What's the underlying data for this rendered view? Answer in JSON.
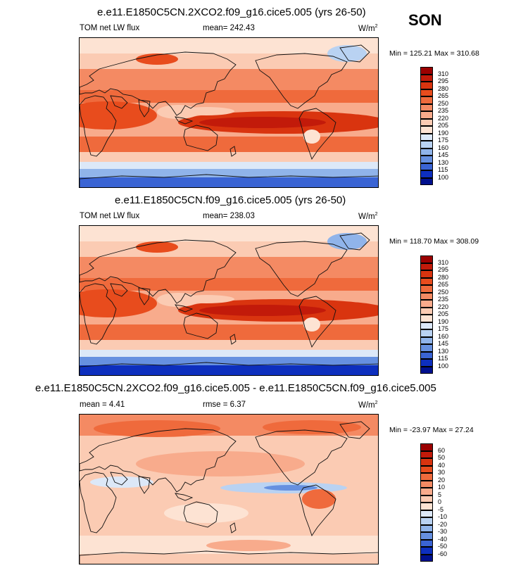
{
  "season": "SON",
  "colors": {
    "coastline": "#111111",
    "map_background": "#fde3d3"
  },
  "colorbar_lw": {
    "levels": [
      "310",
      "295",
      "280",
      "265",
      "250",
      "235",
      "220",
      "205",
      "190",
      "175",
      "160",
      "145",
      "130",
      "115",
      "100"
    ],
    "colors": [
      "#9b0000",
      "#c21a0a",
      "#d9340f",
      "#e84c1d",
      "#ef6a3c",
      "#f48a63",
      "#f8ab8c",
      "#fbcbb3",
      "#fde3d3",
      "#dce8f8",
      "#b9d2f2",
      "#90b4ea",
      "#6690e0",
      "#3a64d4",
      "#0d2fbe",
      "#00108e"
    ]
  },
  "colorbar_diff": {
    "levels": [
      "60",
      "50",
      "40",
      "30",
      "20",
      "10",
      "5",
      "0",
      "-5",
      "-10",
      "-20",
      "-30",
      "-40",
      "-50",
      "-60"
    ],
    "colors": [
      "#9b0000",
      "#c21a0a",
      "#d9340f",
      "#e84c1d",
      "#ef6a3c",
      "#f48a63",
      "#f8ab8c",
      "#fbcbb3",
      "#fde3d3",
      "#dce8f8",
      "#b9d2f2",
      "#90b4ea",
      "#6690e0",
      "#3a64d4",
      "#0d2fbe",
      "#00108e"
    ]
  },
  "panels": [
    {
      "title": "e.e11.E1850C5CN.2XCO2.f09_g16.cice5.005 (yrs 26-50)",
      "left_label": "TOM net LW flux",
      "mid_label": "mean= 242.43",
      "units": "W/m",
      "units_sup": "2",
      "min_max": "Min = 125.21 Max = 310.68",
      "mean": 242.43,
      "min": 125.21,
      "max": 310.68,
      "colorbar": "lw"
    },
    {
      "title": "e.e11.E1850C5CN.f09_g16.cice5.005 (yrs 26-50)",
      "left_label": "TOM net LW flux",
      "mid_label": "mean= 238.03",
      "units": "W/m",
      "units_sup": "2",
      "min_max": "Min = 118.70 Max = 308.09",
      "mean": 238.03,
      "min": 118.7,
      "max": 308.09,
      "colorbar": "lw"
    },
    {
      "title": "e.e11.E1850C5CN.2XCO2.f09_g16.cice5.005 - e.e11.E1850C5CN.f09_g16.cice5.005",
      "left_label": "mean =  4.41",
      "mid_label": "rmse =  6.37",
      "units": "W/m",
      "units_sup": "2",
      "min_max": "Min = -23.97 Max =  27.24",
      "mean": 4.41,
      "rmse": 6.37,
      "min": -23.97,
      "max": 27.24,
      "colorbar": "diff"
    }
  ]
}
